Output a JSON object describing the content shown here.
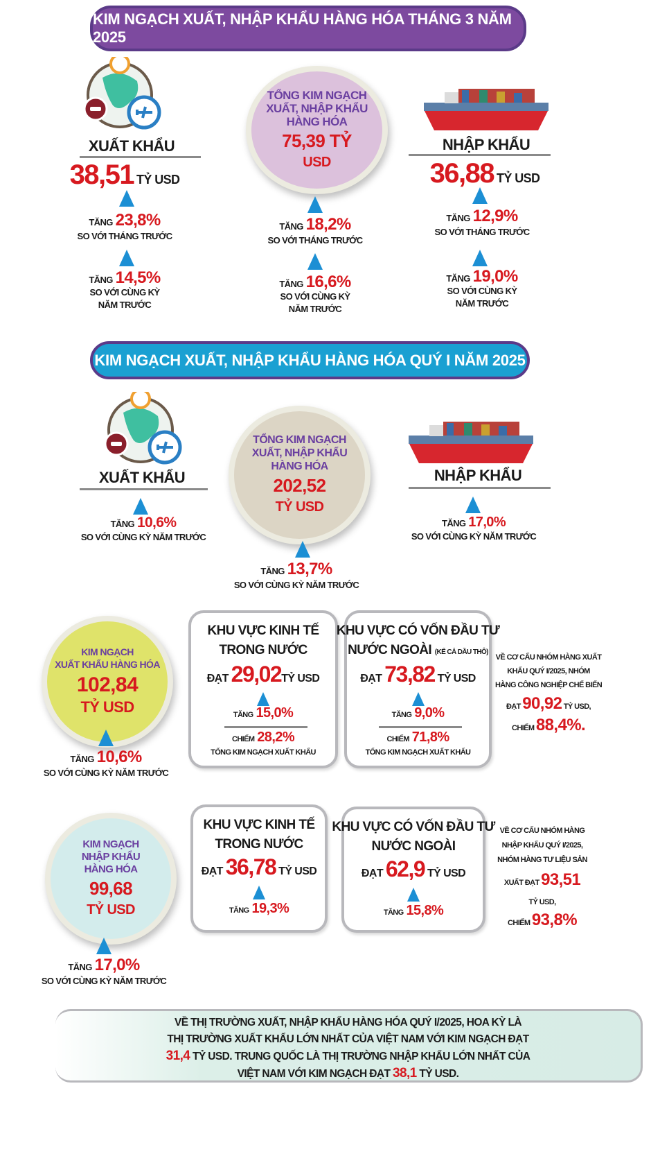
{
  "monthly": {
    "title": "KIM NGẠCH XUẤT, NHẬP KHẨU HÀNG HÓA THÁNG 3 NĂM 2025",
    "exports": {
      "label": "XUẤT KHẨU",
      "value": "38,51",
      "unit": "TỶ USD",
      "mom_prefix": "TĂNG",
      "mom": "23,8%",
      "mom_text": "SO VỚI THÁNG TRƯỚC",
      "yoy_prefix": "TĂNG",
      "yoy": "14,5%",
      "yoy_text1": "SO VỚI CÙNG KỲ",
      "yoy_text2": "NĂM TRƯỚC"
    },
    "total": {
      "label1": "TỔNG KIM NGẠCH",
      "label2": "XUẤT, NHẬP KHẨU",
      "label3": "HÀNG HÓA",
      "value": "75,39 TỶ",
      "unit": "USD",
      "mom_prefix": "TĂNG",
      "mom": "18,2%",
      "mom_text": "SO VỚI THÁNG TRƯỚC",
      "yoy_prefix": "TĂNG",
      "yoy": "16,6%",
      "yoy_text1": "SO VỚI CÙNG KỲ",
      "yoy_text2": "NĂM TRƯỚC"
    },
    "imports": {
      "label": "NHẬP KHẨU",
      "value": "36,88",
      "unit": "TỶ USD",
      "mom_prefix": "TĂNG",
      "mom": "12,9%",
      "mom_text": "SO VỚI THÁNG TRƯỚC",
      "yoy_prefix": "TĂNG",
      "yoy": "19,0%",
      "yoy_text1": "SO VỚI CÙNG KỲ",
      "yoy_text2": "NĂM TRƯỚC"
    }
  },
  "quarter": {
    "title": "KIM NGẠCH XUẤT, NHẬP KHẨU HÀNG HÓA QUÝ I NĂM 2025",
    "exports": {
      "label": "XUẤT KHẨU",
      "prefix": "TĂNG",
      "pct": "10,6%",
      "text": "SO VỚI CÙNG KỲ NĂM TRƯỚC"
    },
    "total": {
      "label1": "TỔNG KIM NGẠCH",
      "label2": "XUẤT, NHẬP KHẨU",
      "label3": "HÀNG HÓA",
      "value": "202,52",
      "unit": "TỶ USD",
      "prefix": "TĂNG",
      "pct": "13,7%",
      "text": "SO VỚI CÙNG KỲ NĂM TRƯỚC"
    },
    "imports": {
      "label": "NHẬP KHẨU",
      "prefix": "TĂNG",
      "pct": "17,0%",
      "text": "SO VỚI CÙNG KỲ NĂM TRƯỚC"
    }
  },
  "export_detail": {
    "circle": {
      "label1": "KIM NGẠCH",
      "label2": "XUẤT KHẨU HÀNG HÓA",
      "value": "102,84",
      "unit": "TỶ USD",
      "prefix": "TĂNG",
      "pct": "10,6%",
      "text": "SO VỚI CÙNG KỲ NĂM TRƯỚC"
    },
    "domestic": {
      "title1": "KHU VỰC KINH TẾ",
      "title2": "TRONG NƯỚC",
      "reach": "ĐẠT",
      "value": "29,02",
      "unit": "TỶ USD",
      "prefix": "TĂNG",
      "pct": "15,0%",
      "share_prefix": "CHIẾM",
      "share": "28,2%",
      "share_text": "TỔNG KIM NGẠCH XUẤT KHẨU"
    },
    "fdi": {
      "title1": "KHU VỰC CÓ VỐN ĐẦU TƯ",
      "title2": "NƯỚC NGOÀI",
      "note": "(KỂ CẢ DẦU THÔ)",
      "reach": "ĐẠT",
      "value": "73,82",
      "unit": "TỶ USD",
      "prefix": "TĂNG",
      "pct": "9,0%",
      "share_prefix": "CHIẾM",
      "share": "71,8%",
      "share_text": "TỔNG KIM NGẠCH XUẤT KHẨU"
    },
    "side": {
      "l1": "VỀ CƠ CẤU NHÓM HÀNG XUẤT",
      "l2": "KHẨU QUÝ I/2025, NHÓM",
      "l3": "HÀNG CÔNG NGHIỆP CHẾ BIẾN",
      "reach": "ĐẠT",
      "value": "90,92",
      "unit": "TỶ USD,",
      "share_prefix": "CHIẾM",
      "share": "88,4%."
    }
  },
  "import_detail": {
    "circle": {
      "label1": "KIM NGẠCH",
      "label2": "NHẬP KHẨU",
      "label3": "HÀNG HÓA",
      "value": "99,68",
      "unit": "TỶ USD",
      "prefix": "TĂNG",
      "pct": "17,0%",
      "text": "SO VỚI CÙNG KỲ NĂM TRƯỚC"
    },
    "domestic": {
      "title1": "KHU VỰC KINH TẾ",
      "title2": "TRONG NƯỚC",
      "reach": "ĐẠT",
      "value": "36,78",
      "unit": "TỶ USD",
      "prefix": "TĂNG",
      "pct": "19,3%"
    },
    "fdi": {
      "title1": "KHU VỰC CÓ VỐN ĐẦU TƯ",
      "title2": "NƯỚC NGOÀI",
      "reach": "ĐẠT",
      "value": "62,9",
      "unit": "TỶ USD",
      "prefix": "TĂNG",
      "pct": "15,8%"
    },
    "side": {
      "l1": "VỀ CƠ CẤU NHÓM HÀNG",
      "l2": "NHẬP KHẨU QUÝ I/2025,",
      "l3": "NHÓM HÀNG TƯ LIỆU SẢN",
      "reach": "XUẤT ĐẠT",
      "value": "93,51",
      "unit": "TỶ USD,",
      "share_prefix": "CHIẾM",
      "share": "93,8%"
    }
  },
  "footer": {
    "l1": "VỀ THỊ TRƯỜNG XUẤT, NHẬP KHẨU HÀNG HÓA QUÝ I/2025, HOA KỲ LÀ",
    "l2": "THỊ TRƯỜNG XUẤT KHẨU LỚN NHẤT CỦA VIỆT NAM VỚI KIM NGẠCH ĐẠT",
    "v1": "31,4",
    "l3": "TỶ USD. TRUNG QUỐC LÀ THỊ TRƯỜNG NHẬP KHẨU LỚN NHẤT CỦA",
    "l4": "VIỆT NAM VỚI KIM NGẠCH ĐẠT",
    "v2": "38,1",
    "l4b": "TỶ USD."
  },
  "colors": {
    "purple_header": "#7d4a9f",
    "blue_header": "#1aa0d2",
    "red": "#d7191f",
    "arrow": "#1c8fd4"
  }
}
